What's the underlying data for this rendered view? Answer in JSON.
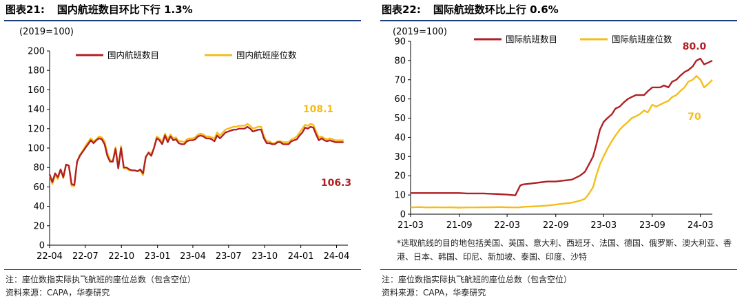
{
  "colors": {
    "primary": "#b01f24",
    "secondary": "#f6bd16",
    "rule": "#1f3f7a"
  },
  "chart_data": [
    {
      "type": "line",
      "fig_label": "图表21:",
      "title": "国内航班数目环比下行 1.3%",
      "unit_label": "(2019=100)",
      "ylim": [
        0,
        200
      ],
      "yticks": [
        0,
        20,
        40,
        60,
        80,
        100,
        120,
        140,
        160,
        180,
        200
      ],
      "xlim": [
        "2022-04-01",
        "2024-04-30"
      ],
      "xticks": [
        {
          "label": "22-04",
          "date": "2022-04-01"
        },
        {
          "label": "22-07",
          "date": "2022-07-01"
        },
        {
          "label": "22-10",
          "date": "2022-10-01"
        },
        {
          "label": "23-01",
          "date": "2023-01-01"
        },
        {
          "label": "23-04",
          "date": "2023-04-01"
        },
        {
          "label": "23-07",
          "date": "2023-07-01"
        },
        {
          "label": "23-10",
          "date": "2023-10-01"
        },
        {
          "label": "24-01",
          "date": "2024-01-01"
        },
        {
          "label": "24-04",
          "date": "2024-04-01"
        }
      ],
      "legend_position": "top",
      "series": [
        {
          "name": "国内航班数目",
          "x": [
            "2022-04-01",
            "2022-04-08",
            "2022-04-15",
            "2022-04-22",
            "2022-04-29",
            "2022-05-06",
            "2022-05-13",
            "2022-05-20",
            "2022-05-27",
            "2022-06-03",
            "2022-06-10",
            "2022-06-17",
            "2022-06-24",
            "2022-07-01",
            "2022-07-08",
            "2022-07-15",
            "2022-07-22",
            "2022-07-29",
            "2022-08-05",
            "2022-08-12",
            "2022-08-19",
            "2022-08-26",
            "2022-09-02",
            "2022-09-09",
            "2022-09-16",
            "2022-09-23",
            "2022-09-30",
            "2022-10-07",
            "2022-10-14",
            "2022-10-21",
            "2022-10-28",
            "2022-11-04",
            "2022-11-11",
            "2022-11-18",
            "2022-11-25",
            "2022-12-02",
            "2022-12-09",
            "2022-12-16",
            "2022-12-23",
            "2022-12-30",
            "2023-01-06",
            "2023-01-13",
            "2023-01-20",
            "2023-01-27",
            "2023-02-03",
            "2023-02-10",
            "2023-02-17",
            "2023-02-24",
            "2023-03-03",
            "2023-03-10",
            "2023-03-17",
            "2023-03-24",
            "2023-03-31",
            "2023-04-07",
            "2023-04-14",
            "2023-04-21",
            "2023-04-28",
            "2023-05-05",
            "2023-05-12",
            "2023-05-19",
            "2023-05-26",
            "2023-06-02",
            "2023-06-09",
            "2023-06-16",
            "2023-06-23",
            "2023-06-30",
            "2023-07-07",
            "2023-07-14",
            "2023-07-21",
            "2023-07-28",
            "2023-08-04",
            "2023-08-11",
            "2023-08-18",
            "2023-08-25",
            "2023-09-01",
            "2023-09-08",
            "2023-09-15",
            "2023-09-22",
            "2023-09-29",
            "2023-10-06",
            "2023-10-13",
            "2023-10-20",
            "2023-10-27",
            "2023-11-03",
            "2023-11-10",
            "2023-11-17",
            "2023-11-24",
            "2023-12-01",
            "2023-12-08",
            "2023-12-15",
            "2023-12-22",
            "2023-12-29",
            "2024-01-05",
            "2024-01-12",
            "2024-01-19",
            "2024-01-26",
            "2024-02-02",
            "2024-02-09",
            "2024-02-16",
            "2024-02-23",
            "2024-03-01",
            "2024-03-08",
            "2024-03-15",
            "2024-03-22",
            "2024-03-29",
            "2024-04-05",
            "2024-04-12",
            "2024-04-19"
          ],
          "y": [
            73,
            65,
            74,
            70,
            78,
            70,
            83,
            82,
            63,
            62,
            86,
            92,
            96,
            100,
            104,
            108,
            105,
            108,
            110,
            109,
            104,
            92,
            86,
            86,
            99,
            79,
            100,
            80,
            80,
            78,
            77,
            77,
            76,
            78,
            74,
            91,
            95,
            92,
            100,
            110,
            108,
            104,
            113,
            106,
            112,
            108,
            109,
            105,
            104,
            104,
            107,
            108,
            108,
            109,
            112,
            113,
            112,
            110,
            110,
            109,
            107,
            113,
            110,
            113,
            116,
            117,
            118,
            119,
            119,
            120,
            120,
            120,
            122,
            120,
            117,
            118,
            119,
            119,
            110,
            105,
            105,
            104,
            104,
            106,
            106,
            104,
            104,
            104,
            107,
            108,
            109,
            113,
            116,
            121,
            120,
            122,
            121,
            114,
            108,
            110,
            108,
            107,
            108,
            107,
            106,
            106,
            106,
            106
          ]
        },
        {
          "name": "国内航班座位数",
          "x": [
            "2022-04-01",
            "2022-04-08",
            "2022-04-15",
            "2022-04-22",
            "2022-04-29",
            "2022-05-06",
            "2022-05-13",
            "2022-05-20",
            "2022-05-27",
            "2022-06-03",
            "2022-06-10",
            "2022-06-17",
            "2022-06-24",
            "2022-07-01",
            "2022-07-08",
            "2022-07-15",
            "2022-07-22",
            "2022-07-29",
            "2022-08-05",
            "2022-08-12",
            "2022-08-19",
            "2022-08-26",
            "2022-09-02",
            "2022-09-09",
            "2022-09-16",
            "2022-09-23",
            "2022-09-30",
            "2022-10-07",
            "2022-10-14",
            "2022-10-21",
            "2022-10-28",
            "2022-11-04",
            "2022-11-11",
            "2022-11-18",
            "2022-11-25",
            "2022-12-02",
            "2022-12-09",
            "2022-12-16",
            "2022-12-23",
            "2022-12-30",
            "2023-01-06",
            "2023-01-13",
            "2023-01-20",
            "2023-01-27",
            "2023-02-03",
            "2023-02-10",
            "2023-02-17",
            "2023-02-24",
            "2023-03-03",
            "2023-03-10",
            "2023-03-17",
            "2023-03-24",
            "2023-03-31",
            "2023-04-07",
            "2023-04-14",
            "2023-04-21",
            "2023-04-28",
            "2023-05-05",
            "2023-05-12",
            "2023-05-19",
            "2023-05-26",
            "2023-06-02",
            "2023-06-09",
            "2023-06-16",
            "2023-06-23",
            "2023-06-30",
            "2023-07-07",
            "2023-07-14",
            "2023-07-21",
            "2023-07-28",
            "2023-08-04",
            "2023-08-11",
            "2023-08-18",
            "2023-08-25",
            "2023-09-01",
            "2023-09-08",
            "2023-09-15",
            "2023-09-22",
            "2023-09-29",
            "2023-10-06",
            "2023-10-13",
            "2023-10-20",
            "2023-10-27",
            "2023-11-03",
            "2023-11-10",
            "2023-11-17",
            "2023-11-24",
            "2023-12-01",
            "2023-12-08",
            "2023-12-15",
            "2023-12-22",
            "2023-12-29",
            "2024-01-05",
            "2024-01-12",
            "2024-01-19",
            "2024-01-26",
            "2024-02-02",
            "2024-02-09",
            "2024-02-16",
            "2024-02-23",
            "2024-03-01",
            "2024-03-08",
            "2024-03-15",
            "2024-03-22",
            "2024-03-29",
            "2024-04-05",
            "2024-04-12",
            "2024-04-19"
          ],
          "y": [
            72,
            63,
            72,
            68,
            78,
            69,
            83,
            82,
            61,
            61,
            86,
            93,
            97,
            102,
            106,
            110,
            107,
            109,
            112,
            111,
            107,
            95,
            88,
            86,
            101,
            80,
            102,
            79,
            79,
            77,
            77,
            77,
            76,
            77,
            72,
            90,
            96,
            94,
            100,
            112,
            110,
            106,
            115,
            109,
            114,
            110,
            111,
            107,
            107,
            106,
            109,
            110,
            110,
            111,
            114,
            115,
            114,
            112,
            112,
            111,
            110,
            116,
            113,
            116,
            119,
            120,
            121,
            122,
            122,
            123,
            123,
            123,
            125,
            123,
            120,
            121,
            122,
            122,
            112,
            107,
            107,
            105,
            105,
            107,
            107,
            106,
            106,
            106,
            109,
            110,
            112,
            116,
            120,
            124,
            123,
            125,
            124,
            117,
            111,
            112,
            110,
            109,
            110,
            109,
            108,
            108,
            108,
            108
          ]
        }
      ],
      "annotations": [
        {
          "text": "108.1",
          "series": "国内航班座位数"
        },
        {
          "text": "106.3",
          "series": "国内航班数目"
        }
      ]
    },
    {
      "type": "line",
      "fig_label": "图表22:",
      "title": "国际航班数环比上行 0.6%",
      "unit_label": "(2019=100)",
      "ylim": [
        0,
        90
      ],
      "yticks": [
        0,
        10,
        20,
        30,
        40,
        50,
        60,
        70,
        80,
        90
      ],
      "xlim": [
        "2021-03-01",
        "2024-04-15"
      ],
      "xticks": [
        {
          "label": "21-03",
          "date": "2021-03-01"
        },
        {
          "label": "21-09",
          "date": "2021-09-01"
        },
        {
          "label": "22-03",
          "date": "2022-03-01"
        },
        {
          "label": "22-09",
          "date": "2022-09-01"
        },
        {
          "label": "23-03",
          "date": "2023-03-01"
        },
        {
          "label": "23-09",
          "date": "2023-09-01"
        },
        {
          "label": "24-03",
          "date": "2024-03-01"
        }
      ],
      "legend_position": "top",
      "series": [
        {
          "name": "国际航班数目",
          "x": [
            "2021-03-01",
            "2021-04-01",
            "2021-05-01",
            "2021-06-01",
            "2021-07-01",
            "2021-08-01",
            "2021-09-01",
            "2021-10-01",
            "2021-11-01",
            "2021-12-01",
            "2022-01-01",
            "2022-02-01",
            "2022-03-01",
            "2022-04-01",
            "2022-04-20",
            "2022-05-01",
            "2022-06-01",
            "2022-07-01",
            "2022-08-01",
            "2022-09-01",
            "2022-10-01",
            "2022-11-01",
            "2022-12-01",
            "2022-12-20",
            "2023-01-01",
            "2023-01-20",
            "2023-02-01",
            "2023-02-15",
            "2023-03-01",
            "2023-03-15",
            "2023-04-01",
            "2023-04-15",
            "2023-05-01",
            "2023-05-15",
            "2023-06-01",
            "2023-06-15",
            "2023-07-01",
            "2023-07-15",
            "2023-08-01",
            "2023-08-15",
            "2023-09-01",
            "2023-09-15",
            "2023-10-01",
            "2023-10-15",
            "2023-11-01",
            "2023-11-15",
            "2023-12-01",
            "2023-12-15",
            "2024-01-01",
            "2024-01-15",
            "2024-02-01",
            "2024-02-15",
            "2024-03-01",
            "2024-03-15",
            "2024-04-01",
            "2024-04-15"
          ],
          "y": [
            11,
            11,
            11,
            11,
            11,
            11,
            11,
            10.8,
            10.8,
            10.8,
            10.6,
            10.4,
            10.2,
            9.8,
            15,
            15.5,
            16,
            16.5,
            17,
            17,
            17.5,
            18,
            20,
            22,
            25,
            30,
            36,
            44,
            48,
            50,
            52,
            55,
            56,
            58,
            60,
            61,
            62,
            62,
            62,
            64,
            66,
            66,
            66,
            67,
            66,
            69,
            70,
            72,
            74,
            75,
            77,
            80,
            81,
            78,
            79,
            80
          ]
        },
        {
          "name": "国际航班座位数",
          "x": [
            "2021-03-01",
            "2021-04-01",
            "2021-05-01",
            "2021-06-01",
            "2021-07-01",
            "2021-08-01",
            "2021-09-01",
            "2021-10-01",
            "2021-11-01",
            "2021-12-01",
            "2022-01-01",
            "2022-02-01",
            "2022-03-01",
            "2022-04-01",
            "2022-04-20",
            "2022-05-01",
            "2022-06-01",
            "2022-07-01",
            "2022-08-01",
            "2022-09-01",
            "2022-10-01",
            "2022-11-01",
            "2022-12-01",
            "2022-12-20",
            "2023-01-01",
            "2023-01-20",
            "2023-02-01",
            "2023-02-15",
            "2023-03-01",
            "2023-03-15",
            "2023-04-01",
            "2023-04-15",
            "2023-05-01",
            "2023-05-15",
            "2023-06-01",
            "2023-06-15",
            "2023-07-01",
            "2023-07-15",
            "2023-08-01",
            "2023-08-15",
            "2023-09-01",
            "2023-09-15",
            "2023-10-01",
            "2023-10-15",
            "2023-11-01",
            "2023-11-15",
            "2023-12-01",
            "2023-12-15",
            "2024-01-01",
            "2024-01-15",
            "2024-02-01",
            "2024-02-15",
            "2024-03-01",
            "2024-03-15",
            "2024-04-01",
            "2024-04-15"
          ],
          "y": [
            3.5,
            3.7,
            3.5,
            3.6,
            3.5,
            3.6,
            3.4,
            3.5,
            3.5,
            3.6,
            3.6,
            3.7,
            3.6,
            3.5,
            3.6,
            3.8,
            4,
            4.2,
            4.5,
            5,
            5.5,
            6,
            7,
            8,
            10,
            14,
            20,
            26,
            30,
            34,
            38,
            41,
            44,
            46,
            48,
            50,
            51,
            52,
            54,
            53,
            57,
            56,
            57,
            58,
            59,
            61,
            62,
            64,
            66,
            69,
            70,
            72,
            70,
            66,
            68,
            70
          ]
        }
      ],
      "annotations": [
        {
          "text": "80.0",
          "series": "国际航班数目"
        },
        {
          "text": "70",
          "series": "国际航班座位数"
        }
      ]
    }
  ],
  "notes": {
    "p1_note": "注：座位数指实际执飞航班的座位总数（包含空位）",
    "p1_source": "资料来源：CAPA，华泰研究",
    "p2_footnote": "*选取航线的目的地包括美国、英国、意大利、西班牙、法国、德国、俄罗斯、澳大利亚、香港、日本、韩国、印尼、新加坡、泰国、印度、沙特",
    "p2_note": "注：座位数指实际执飞航班的座位总数（包含空位）",
    "p2_source": "资料来源：CAPA，华泰研究"
  }
}
